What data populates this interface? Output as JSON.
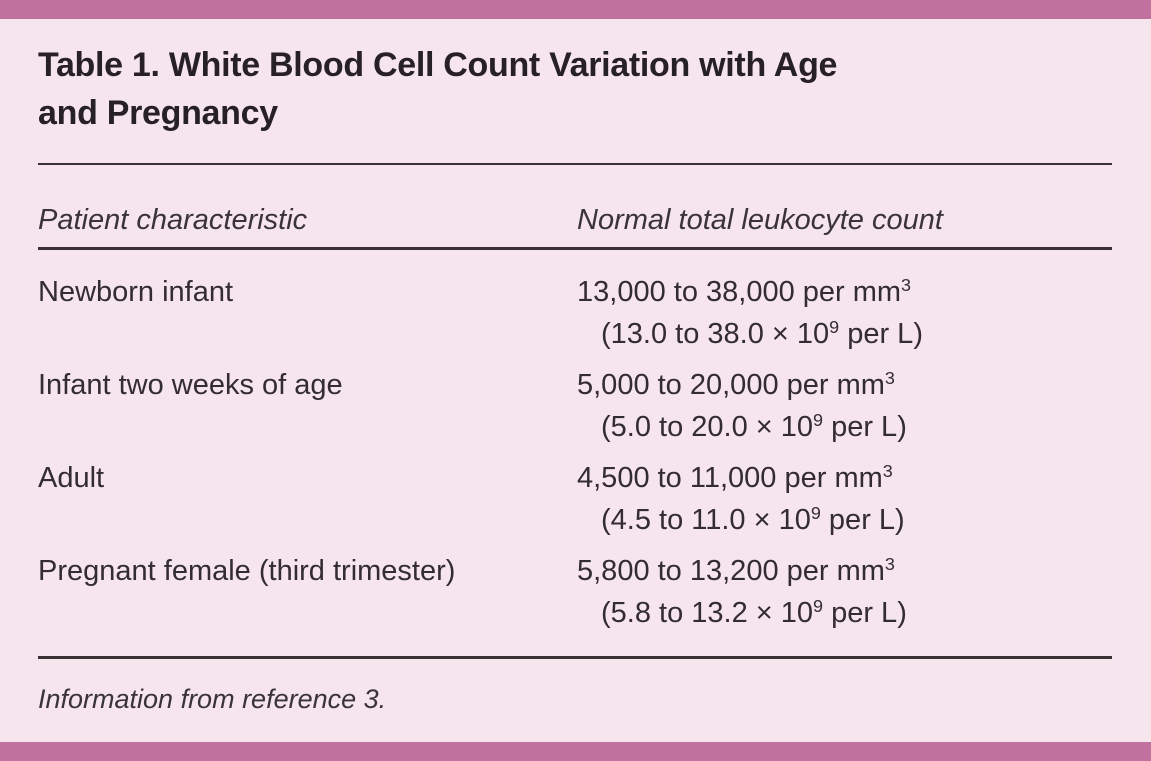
{
  "figure": {
    "title_lines": [
      "Table 1. White Blood Cell Count Variation with Age",
      "and Pregnancy"
    ],
    "columns": [
      "Patient characteristic",
      "Normal total leukocyte count"
    ],
    "rows": [
      {
        "label": "Newborn infant",
        "mm3": "13,000 to 38,000 per mm",
        "mm3_sup": "3",
        "si_pre": "(13.0 to 38.0 × 10",
        "si_sup": "9",
        "si_post": " per L)"
      },
      {
        "label": "Infant two weeks of age",
        "mm3": "5,000 to 20,000 per mm",
        "mm3_sup": "3",
        "si_pre": "(5.0 to 20.0 × 10",
        "si_sup": "9",
        "si_post": " per L)"
      },
      {
        "label": "Adult",
        "mm3": "4,500 to 11,000 per mm",
        "mm3_sup": "3",
        "si_pre": "(4.5 to 11.0 × 10",
        "si_sup": "9",
        "si_post": " per L)"
      },
      {
        "label": "Pregnant female (third trimester)",
        "mm3": "5,800 to 13,200 per mm",
        "mm3_sup": "3",
        "si_pre": "(5.8 to 13.2 × 10",
        "si_sup": "9",
        "si_post": " per L)"
      }
    ],
    "footnote": "Information from reference 3.",
    "colors": {
      "accent_bar": "#c0719d",
      "background": "#f6e5ed",
      "text": "#332c30",
      "rule": "#3a3135"
    }
  }
}
